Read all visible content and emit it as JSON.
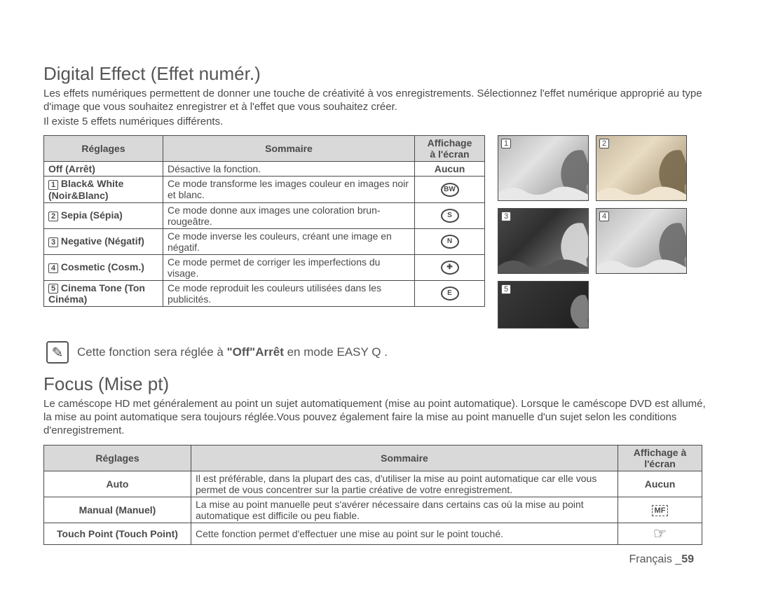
{
  "section1": {
    "title": "Digital Effect (Effet numér.)",
    "para1": "Les effets numériques permettent de donner une touche de créativité à vos enregistrements. Sélectionnez l'effet numérique approprié au type d'image que vous souhaitez enregistrer et à l'effet que vous souhaitez créer.",
    "para2": "Il existe 5 effets numériques différents."
  },
  "tbl1": {
    "head": {
      "c1": "Réglages",
      "c2": "Sommaire",
      "c3": "Affichage\nà l'écran"
    },
    "rows": [
      {
        "n": "",
        "setting": "Off (Arrêt)",
        "desc": "Désactive la fonction.",
        "disp": "Aucun",
        "disp_bold": true
      },
      {
        "n": "1",
        "setting": "Black& White (Noir&Blanc)",
        "desc": "Ce mode transforme les images couleur en images noir et blanc.",
        "disp": "BW"
      },
      {
        "n": "2",
        "setting": "Sepia (Sépia)",
        "desc": "Ce mode donne aux images une coloration brun-rougeâtre.",
        "disp": "S"
      },
      {
        "n": "3",
        "setting": "Negative (Négatif)",
        "desc": "Ce mode inverse les couleurs, créant une image en négatif.",
        "disp": "N"
      },
      {
        "n": "4",
        "setting": "Cosmetic (Cosm.)",
        "desc": "Ce mode permet de corriger les imperfections du visage.",
        "disp": "✚"
      },
      {
        "n": "5",
        "setting": "Cinema Tone (Ton Cinéma)",
        "desc": "Ce mode reproduit les couleurs utilisées dans les publicités.",
        "disp": "E"
      }
    ]
  },
  "thumbs": {
    "n1": "1",
    "n2": "2",
    "n3": "3",
    "n4": "4",
    "n5": "5"
  },
  "note": {
    "pre": "Cette fonction sera réglée à ",
    "bold": "\"Off\"Arrêt",
    "post": " en mode EASY Q ."
  },
  "section2": {
    "title": "Focus (Mise pt)",
    "para": "Le caméscope HD met généralement au point un sujet automatiquement (mise au point automatique). Lorsque le caméscope DVD est allumé, la mise au point automatique sera toujours réglée.Vous pouvez également faire la mise au point manuelle d'un sujet selon les conditions d'enregistrement."
  },
  "tbl2": {
    "head": {
      "c1": "Réglages",
      "c2": "Sommaire",
      "c3": "Affichage à\nl'écran"
    },
    "rows": [
      {
        "setting": "Auto",
        "desc": "Il est préférable, dans la plupart des cas, d'utiliser la mise au point automatique car elle vous permet de vous concentrer sur la partie créative de votre enregistrement.",
        "disp": "Aucun",
        "kind": "text"
      },
      {
        "setting": "Manual (Manuel)",
        "desc": "La mise au point manuelle peut s'avérer nécessaire dans certains cas où la mise au point automatique est difficile ou peu fiable.",
        "disp": "MF",
        "kind": "mf"
      },
      {
        "setting": "Touch Point (Touch Point)",
        "desc": "Cette fonction permet d'effectuer une mise au point sur le point touché.",
        "disp": "☞",
        "kind": "hand"
      }
    ]
  },
  "footer": {
    "lang": "Français _",
    "page": "59"
  }
}
